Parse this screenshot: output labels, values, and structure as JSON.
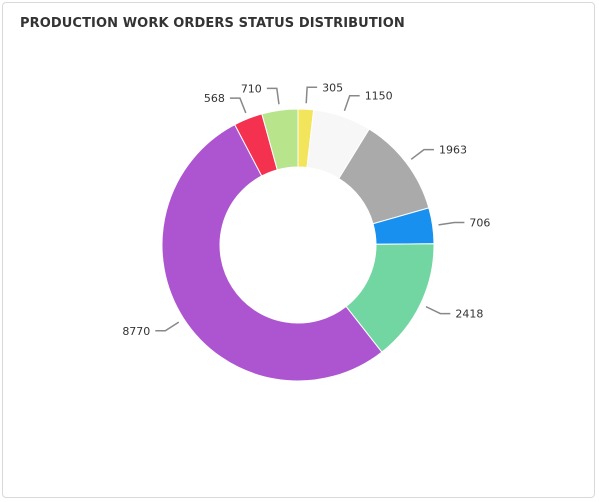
{
  "chart_data": {
    "type": "pie",
    "title": "PRODUCTION WORK ORDERS STATUS DISTRIBUTION",
    "donut": true,
    "slices": [
      {
        "value": 305,
        "label": "305",
        "color": "#f2e55b"
      },
      {
        "value": 1150,
        "label": "1150",
        "color": "#f7f7f7"
      },
      {
        "value": 1963,
        "label": "1963",
        "color": "#aaaaaa"
      },
      {
        "value": 706,
        "label": "706",
        "color": "#1890f0"
      },
      {
        "value": 2418,
        "label": "2418",
        "color": "#72d6a2"
      },
      {
        "value": 8770,
        "label": "8770",
        "color": "#ad55d0"
      },
      {
        "value": 568,
        "label": "568",
        "color": "#f53150"
      },
      {
        "value": 710,
        "label": "710",
        "color": "#b8e48c"
      }
    ]
  }
}
